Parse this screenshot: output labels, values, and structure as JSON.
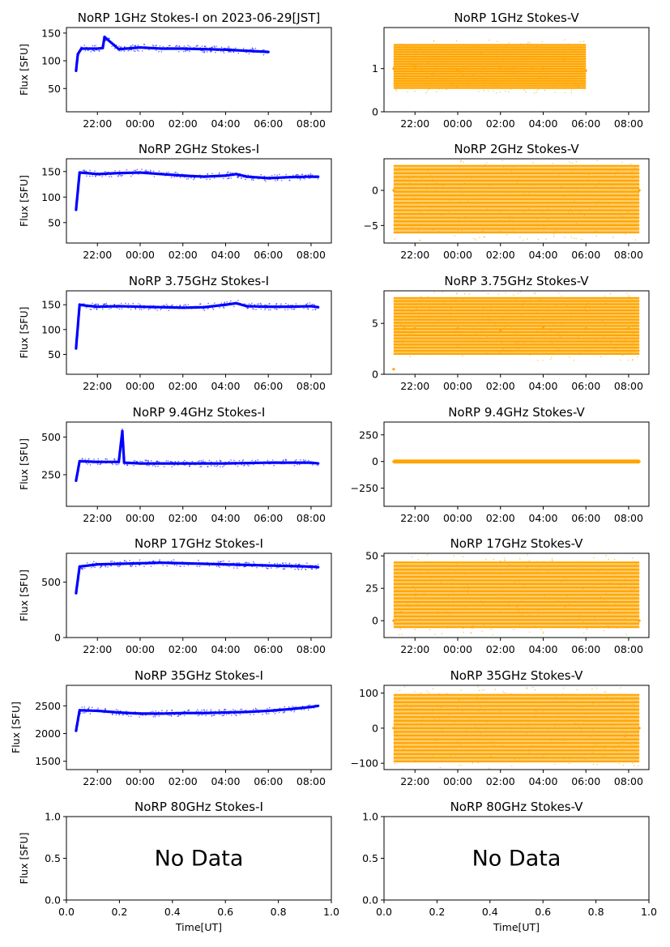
{
  "figure": {
    "x_time_ticks": [
      "22:00",
      "00:00",
      "02:00",
      "04:00",
      "06:00",
      "08:00"
    ],
    "x_unit_ticks": [
      "0.0",
      "0.2",
      "0.4",
      "0.6",
      "0.8",
      "1.0"
    ],
    "xlabel": "Time[UT]",
    "ylabel": "Flux [SFU]",
    "no_data_text": "No Data",
    "colors": {
      "stokes_i": "#0000ff",
      "stokes_v": "#ffa500"
    }
  },
  "chart_data": [
    {
      "id": "i1",
      "type": "scatter",
      "title": "NoRP 1GHz Stokes-I on 2023-06-29[JST]",
      "ylabel": "Flux [SFU]",
      "ylim": [
        8,
        160
      ],
      "yticks": [
        50,
        100,
        150
      ],
      "x_range": [
        "20:33",
        "08:57"
      ],
      "data_end": "06:00",
      "series": [
        {
          "x": [
            "21:00",
            "21:05",
            "21:15",
            "22:00",
            "22:15",
            "22:20",
            "23:00",
            "00:00",
            "01:00",
            "02:00",
            "03:00",
            "04:00",
            "05:00",
            "06:00"
          ],
          "y": [
            82,
            112,
            122,
            122,
            123,
            143,
            121,
            124,
            122,
            122,
            121,
            120,
            118,
            116
          ]
        }
      ]
    },
    {
      "id": "v1",
      "type": "scatter",
      "title": "NoRP 1GHz Stokes-V",
      "ylim": [
        0,
        1.95
      ],
      "yticks": [
        0,
        1
      ],
      "x_range": [
        "20:33",
        "08:57"
      ],
      "data_end": "06:00",
      "band": [
        0.55,
        1.55
      ],
      "series": [
        {
          "x": [
            "21:00",
            "22:00",
            "00:00",
            "02:00",
            "04:00",
            "06:00"
          ],
          "y": [
            1.0,
            1.0,
            0.95,
            1.0,
            1.0,
            0.95
          ]
        }
      ]
    },
    {
      "id": "i2",
      "type": "scatter",
      "title": "NoRP 2GHz Stokes-I",
      "ylabel": "Flux [SFU]",
      "ylim": [
        10,
        175
      ],
      "yticks": [
        50,
        100,
        150
      ],
      "x_range": [
        "20:33",
        "08:57"
      ],
      "data_end": "08:20",
      "series": [
        {
          "x": [
            "21:00",
            "21:10",
            "21:30",
            "22:00",
            "23:00",
            "00:00",
            "01:00",
            "02:00",
            "03:00",
            "04:00",
            "04:30",
            "05:00",
            "06:00",
            "07:00",
            "08:00",
            "08:20"
          ],
          "y": [
            75,
            148,
            147,
            145,
            147,
            148,
            145,
            142,
            140,
            142,
            145,
            140,
            137,
            139,
            140,
            140
          ]
        }
      ]
    },
    {
      "id": "v2",
      "type": "scatter",
      "title": "NoRP 2GHz Stokes-V",
      "ylim": [
        -7.5,
        4.5
      ],
      "yticks": [
        -5,
        0
      ],
      "x_range": [
        "20:33",
        "08:57"
      ],
      "data_end": "08:30",
      "band": [
        -6,
        3.5
      ],
      "series": [
        {
          "x": [
            "21:00",
            "08:30"
          ],
          "y": [
            0,
            0
          ]
        }
      ]
    },
    {
      "id": "i3",
      "type": "scatter",
      "title": "NoRP 3.75GHz Stokes-I",
      "ylabel": "Flux [SFU]",
      "ylim": [
        10,
        178
      ],
      "yticks": [
        50,
        100,
        150
      ],
      "x_range": [
        "20:33",
        "08:57"
      ],
      "data_end": "08:20",
      "series": [
        {
          "x": [
            "21:00",
            "21:10",
            "21:30",
            "22:00",
            "23:00",
            "00:00",
            "01:00",
            "02:00",
            "03:00",
            "04:00",
            "04:30",
            "05:00",
            "06:00",
            "07:00",
            "08:00",
            "08:20"
          ],
          "y": [
            62,
            150,
            148,
            146,
            147,
            146,
            145,
            144,
            145,
            150,
            153,
            147,
            146,
            146,
            147,
            145
          ]
        }
      ]
    },
    {
      "id": "v3",
      "type": "scatter",
      "title": "NoRP 3.75GHz Stokes-V",
      "ylim": [
        0,
        8.2
      ],
      "yticks": [
        0,
        5
      ],
      "x_range": [
        "20:33",
        "08:57"
      ],
      "data_end": "08:30",
      "band": [
        2.0,
        7.5
      ],
      "series": [
        {
          "x": [
            "21:00",
            "21:30",
            "22:00",
            "00:00",
            "02:00",
            "04:00",
            "06:00",
            "08:00"
          ],
          "y": [
            0.5,
            4.5,
            4.5,
            4.5,
            4.3,
            4.6,
            4.5,
            4.5
          ]
        }
      ]
    },
    {
      "id": "i4",
      "type": "scatter",
      "title": "NoRP 9.4GHz Stokes-I",
      "ylabel": "Flux [SFU]",
      "ylim": [
        40,
        600
      ],
      "yticks": [
        250,
        500
      ],
      "x_range": [
        "20:33",
        "08:57"
      ],
      "data_end": "08:20",
      "series": [
        {
          "x": [
            "21:00",
            "21:10",
            "22:00",
            "23:00",
            "23:10",
            "23:15",
            "00:00",
            "02:00",
            "04:00",
            "06:00",
            "08:00",
            "08:20"
          ],
          "y": [
            210,
            340,
            335,
            335,
            540,
            330,
            325,
            325,
            325,
            330,
            330,
            325
          ]
        }
      ]
    },
    {
      "id": "v4",
      "type": "scatter",
      "title": "NoRP 9.4GHz Stokes-V",
      "ylim": [
        -420,
        370
      ],
      "yticks": [
        -250,
        0,
        250
      ],
      "x_range": [
        "20:33",
        "08:57"
      ],
      "data_end": "08:30",
      "band": [
        -10,
        10
      ],
      "series": [
        {
          "x": [
            "21:00",
            "22:00",
            "23:10",
            "00:00",
            "04:00",
            "08:30"
          ],
          "y": [
            0,
            0,
            0,
            0,
            0,
            0
          ]
        }
      ]
    },
    {
      "id": "i5",
      "type": "scatter",
      "title": "NoRP 17GHz Stokes-I",
      "ylabel": "Flux [SFU]",
      "ylim": [
        0,
        760
      ],
      "yticks": [
        0,
        500
      ],
      "x_range": [
        "20:33",
        "08:57"
      ],
      "data_end": "08:20",
      "series": [
        {
          "x": [
            "21:00",
            "21:10",
            "22:00",
            "00:00",
            "01:00",
            "02:00",
            "04:00",
            "06:00",
            "08:00",
            "08:20"
          ],
          "y": [
            400,
            640,
            660,
            670,
            675,
            670,
            660,
            650,
            640,
            635
          ]
        }
      ]
    },
    {
      "id": "v5",
      "type": "scatter",
      "title": "NoRP 17GHz Stokes-V",
      "ylim": [
        -13,
        52
      ],
      "yticks": [
        0,
        25,
        50
      ],
      "x_range": [
        "20:33",
        "08:57"
      ],
      "data_end": "08:30",
      "band": [
        -5,
        45
      ],
      "series": [
        {
          "x": [
            "21:00",
            "08:30"
          ],
          "y": [
            0,
            0
          ]
        }
      ]
    },
    {
      "id": "i6",
      "type": "scatter",
      "title": "NoRP 35GHz Stokes-I",
      "ylabel": "Flux [SFU]",
      "ylim": [
        1350,
        2870
      ],
      "yticks": [
        1500,
        2000,
        2500
      ],
      "x_range": [
        "20:33",
        "08:57"
      ],
      "data_end": "08:20",
      "series": [
        {
          "x": [
            "21:00",
            "21:10",
            "22:00",
            "23:00",
            "00:00",
            "01:00",
            "02:00",
            "03:00",
            "04:00",
            "05:00",
            "06:00",
            "07:00",
            "08:00",
            "08:20"
          ],
          "y": [
            2050,
            2420,
            2410,
            2380,
            2360,
            2360,
            2370,
            2370,
            2380,
            2390,
            2410,
            2440,
            2480,
            2500
          ]
        }
      ]
    },
    {
      "id": "v6",
      "type": "scatter",
      "title": "NoRP 35GHz Stokes-V",
      "ylim": [
        -118,
        122
      ],
      "yticks": [
        -100,
        0,
        100
      ],
      "x_range": [
        "20:33",
        "08:57"
      ],
      "data_end": "08:30",
      "band": [
        -95,
        95
      ],
      "series": [
        {
          "x": [
            "21:00",
            "08:30"
          ],
          "y": [
            0,
            0
          ]
        }
      ]
    },
    {
      "id": "i7",
      "type": "empty",
      "title": "NoRP 80GHz Stokes-I",
      "ylabel": "Flux [SFU]",
      "xlabel": "Time[UT]",
      "ylim": [
        0,
        1
      ],
      "yticks": [
        "0.0",
        "0.5",
        "1.0"
      ],
      "annotation": "No Data"
    },
    {
      "id": "v7",
      "type": "empty",
      "title": "NoRP 80GHz Stokes-V",
      "xlabel": "Time[UT]",
      "ylim": [
        0,
        1
      ],
      "yticks": [
        "0.0",
        "0.5",
        "1.0"
      ],
      "annotation": "No Data"
    }
  ]
}
